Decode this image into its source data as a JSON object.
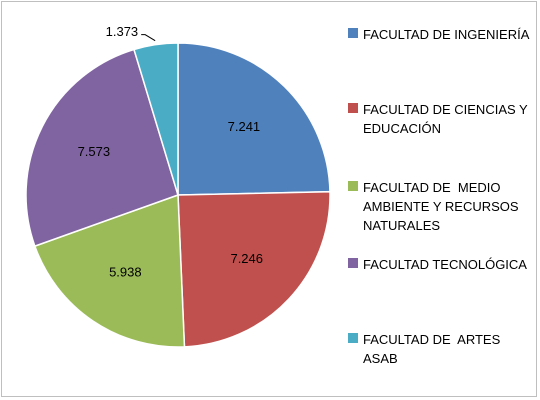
{
  "chart_data": {
    "type": "pie",
    "categories": [
      "FACULTAD DE INGENIERÍA",
      "FACULTAD DE CIENCIAS Y EDUCACIÓN",
      "FACULTAD DE  MEDIO AMBIENTE Y RECURSOS NATURALES",
      "FACULTAD TECNOLÓGICA",
      "FACULTAD DE  ARTES ASAB"
    ],
    "values": [
      7.241,
      7.246,
      5.938,
      7.573,
      1.373
    ],
    "colors": [
      "#4f81bd",
      "#c0504d",
      "#9bbb59",
      "#8064a2",
      "#4bacc6"
    ],
    "legend": "right"
  }
}
